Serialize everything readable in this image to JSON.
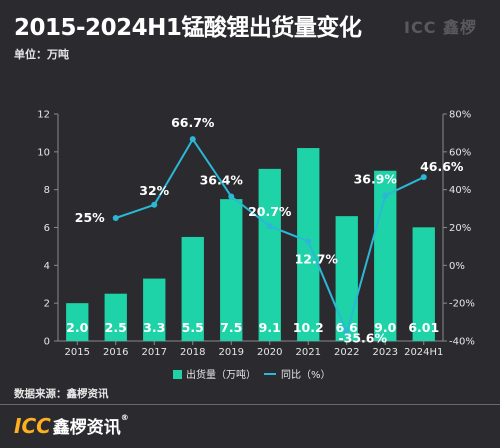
{
  "title": "2015-2024H1锰酸锂出货量变化",
  "unit_label": "单位：万吨",
  "source_label": "数据来源：鑫椤资讯",
  "header_logo": "ICC 鑫椤",
  "footer_logo": {
    "brand": "ICC",
    "name": "鑫椤资讯",
    "mark": "®"
  },
  "colors": {
    "bar": "#1ed3a8",
    "line": "#2bb8d6",
    "background": "#2b2b2f"
  },
  "chart_data": {
    "type": "bar",
    "categories": [
      "2015",
      "2016",
      "2017",
      "2018",
      "2019",
      "2020",
      "2021",
      "2022",
      "2023",
      "2024H1"
    ],
    "series": [
      {
        "name": "出货量（万吨）",
        "type": "bar",
        "axis": "left",
        "values": [
          2.0,
          2.5,
          3.3,
          5.5,
          7.5,
          9.1,
          10.2,
          6.6,
          9.0,
          6.01
        ],
        "labels": [
          "2.0",
          "2.5",
          "3.3",
          "5.5",
          "7.5",
          "9.1",
          "10.2",
          "6.6",
          "9.0",
          "6.01"
        ]
      },
      {
        "name": "同比（%）",
        "type": "line",
        "axis": "right",
        "values": [
          null,
          25,
          32,
          66.7,
          36.4,
          20.7,
          12.7,
          -35.6,
          36.9,
          46.6
        ],
        "labels": [
          "",
          "25%",
          "32%",
          "66.7%",
          "36.4%",
          "20.7%",
          "12.7%",
          "-35.6%",
          "36.9%",
          "46.6%"
        ]
      }
    ],
    "y_left": {
      "min": 0,
      "max": 12,
      "ticks": [
        0,
        2,
        4,
        6,
        8,
        10,
        12
      ]
    },
    "y_right": {
      "min": -40,
      "max": 80,
      "ticks": [
        "-40%",
        "-20%",
        "0%",
        "20%",
        "40%",
        "60%",
        "80%"
      ]
    },
    "legend": {
      "position": "bottom",
      "items": [
        "出货量（万吨）",
        "同比（%）"
      ]
    },
    "grid": false
  }
}
